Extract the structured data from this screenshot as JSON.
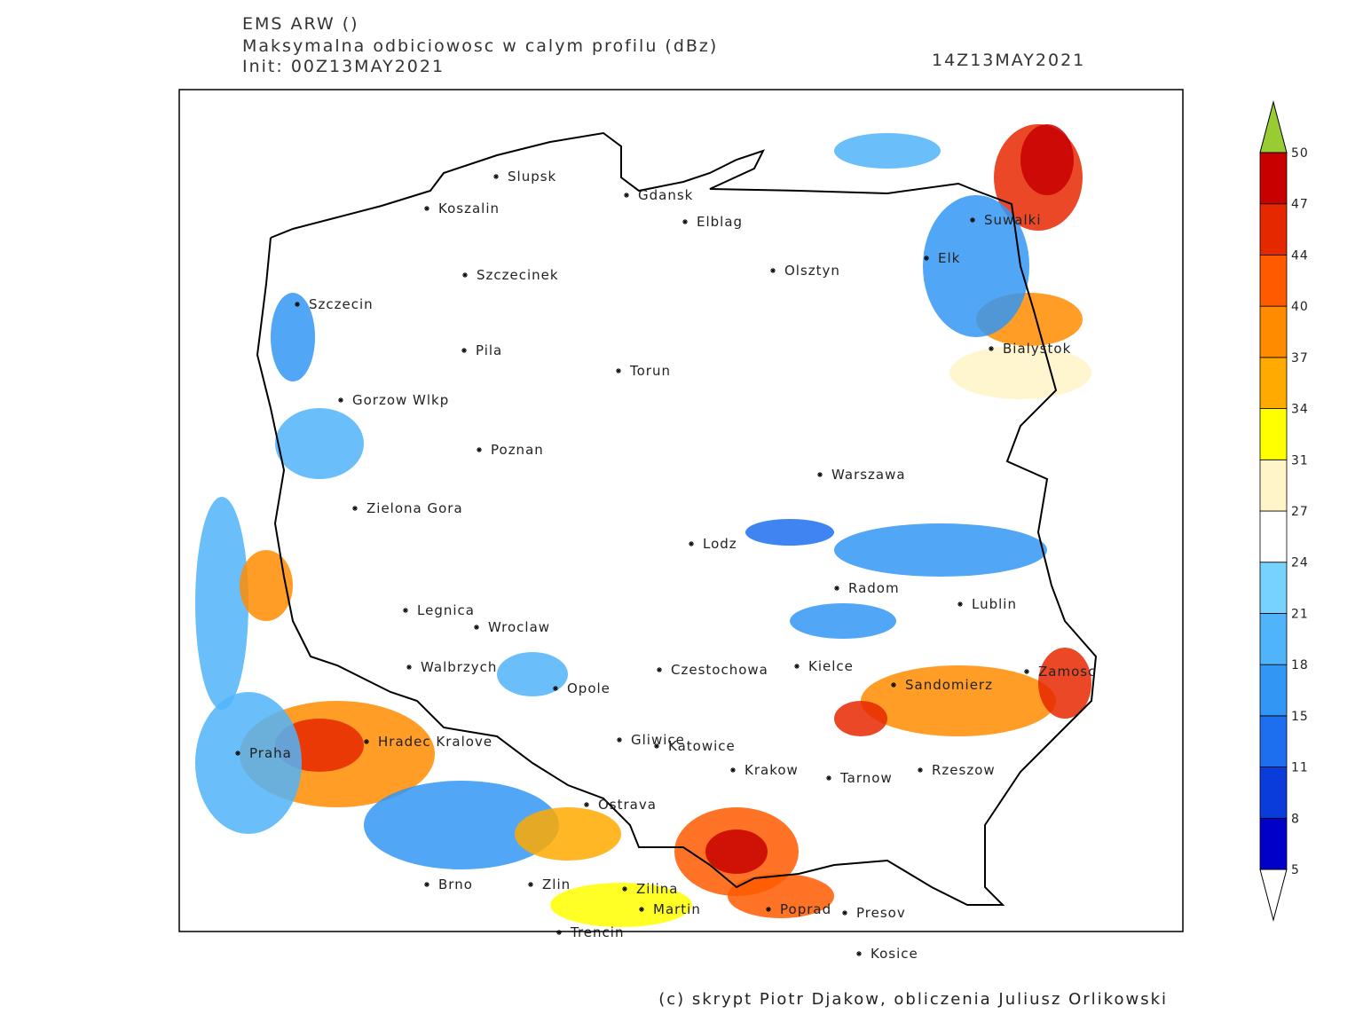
{
  "header": {
    "model": "EMS ARW ()",
    "field": "Maksymalna odbiciowosc w calym profilu (dBz)",
    "init": "Init: 00Z13MAY2021",
    "valid": "14Z13MAY2021"
  },
  "cities": [
    "Slupsk",
    "Koszalin",
    "Gdansk",
    "Elblag",
    "Suwalki",
    "Szczecinek",
    "Olsztyn",
    "Elk",
    "Szczecin",
    "Bialystok",
    "Pila",
    "Torun",
    "Gorzow Wlkp",
    "Poznan",
    "Warszawa",
    "Zielona Gora",
    "Lodz",
    "Radom",
    "Lublin",
    "Legnica",
    "Wroclaw",
    "Walbrzych",
    "Czestochowa",
    "Kielce",
    "Opole",
    "Sandomierz",
    "Zamosc",
    "Hradec Kralove",
    "Praha",
    "Gliwice",
    "Katowice",
    "Krakow",
    "Tarnow",
    "Rzeszow",
    "Ostrava",
    "Brno",
    "Zlin",
    "Zilina",
    "Martin",
    "Poprad",
    "Presov",
    "Trencin",
    "Kosice"
  ],
  "colorbar": {
    "levels": [
      5,
      8,
      11,
      15,
      18,
      21,
      24,
      27,
      31,
      34,
      37,
      40,
      44,
      47,
      50
    ],
    "colors": [
      "#0000c8",
      "#0a3cdc",
      "#1e6ef0",
      "#3296f5",
      "#50b4fa",
      "#78d2ff",
      "#ffffff",
      "#fff5c8",
      "#ffff00",
      "#ffaa00",
      "#ff8c00",
      "#ff5a00",
      "#e62800",
      "#c80000"
    ],
    "over_color": "#99cc33",
    "under_color": "#ffffff"
  },
  "footer": "(c) skrypt Piotr Djakow, obliczenia Juliusz Orlikowski"
}
